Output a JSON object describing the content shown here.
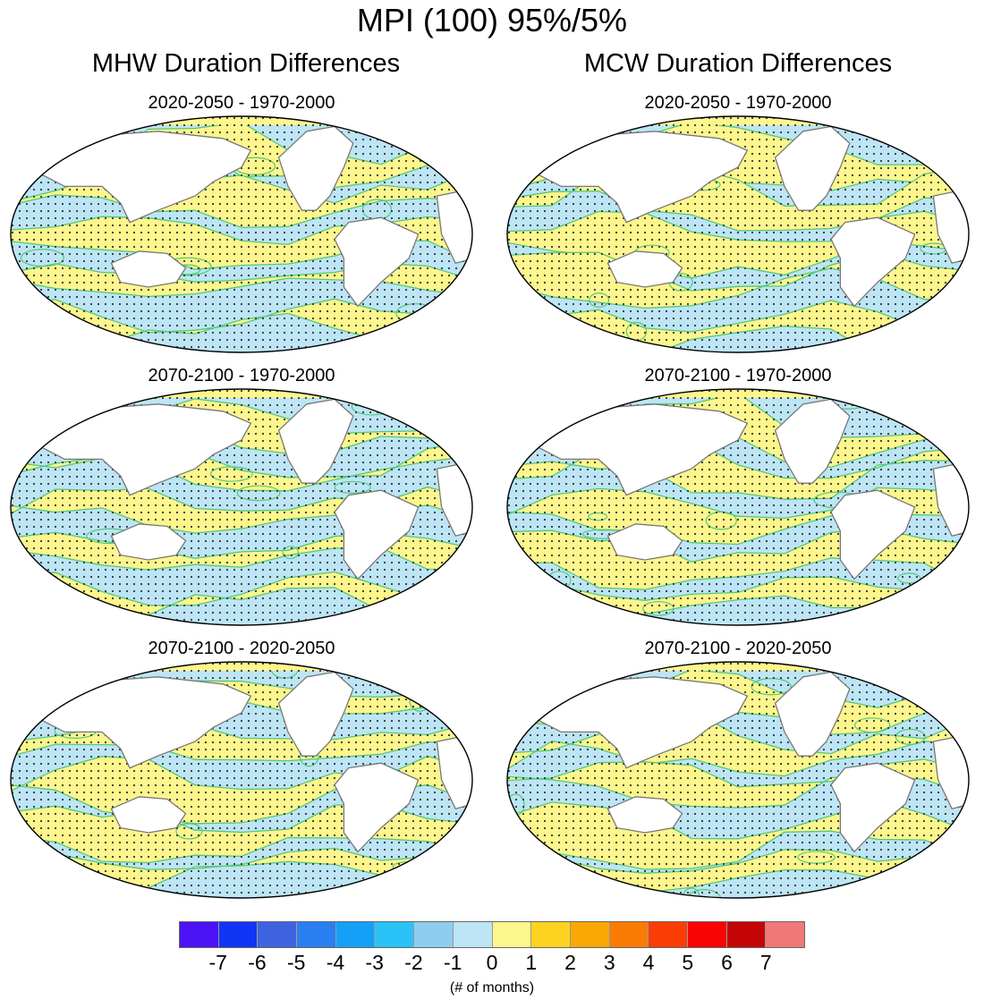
{
  "title": "MPI (100) 95%/5%",
  "columns": [
    {
      "title": "MHW Duration Differences"
    },
    {
      "title": "MCW Duration Differences"
    }
  ],
  "panels": [
    {
      "title": "2020-2050 - 1970-2000",
      "seed": 11
    },
    {
      "title": "2020-2050 - 1970-2000",
      "seed": 23
    },
    {
      "title": "2070-2100 - 1970-2000",
      "seed": 37
    },
    {
      "title": "2070-2100 - 1970-2000",
      "seed": 41
    },
    {
      "title": "2070-2100 - 2020-2050",
      "seed": 53
    },
    {
      "title": "2070-2100 - 2020-2050",
      "seed": 67
    }
  ],
  "colorbar": {
    "colors": [
      "#4b12f5",
      "#1234f5",
      "#3e63e0",
      "#2a7ff0",
      "#14a0f7",
      "#2bc3f7",
      "#8fcdf0",
      "#bde5f5",
      "#fdf68d",
      "#fdd320",
      "#fba805",
      "#fb7b05",
      "#fb3c05",
      "#f80505",
      "#c40505",
      "#f07878"
    ],
    "ticks": [
      "-7",
      "-6",
      "-5",
      "-4",
      "-3",
      "-2",
      "-1",
      "0",
      "1",
      "2",
      "3",
      "4",
      "5",
      "6",
      "7"
    ],
    "label": "(# of months)"
  }
}
